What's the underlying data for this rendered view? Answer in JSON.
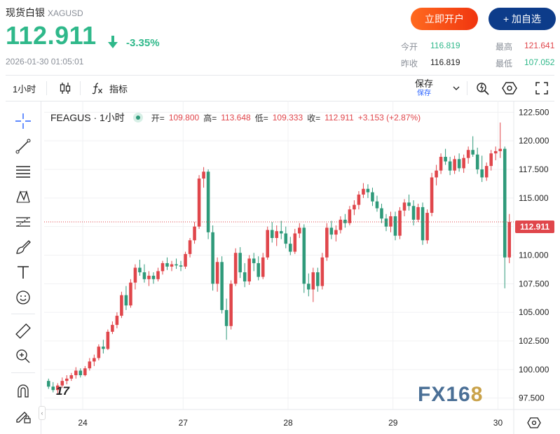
{
  "header": {
    "name": "现货白银",
    "code": "XAGUSD",
    "price": "112.911",
    "change_pct": "-3.35%",
    "timestamp": "2026-01-30 01:05:01",
    "open_account_label": "立即开户",
    "add_watch_label": "+ 加自选"
  },
  "stats": {
    "open_label": "今开",
    "open_value": "116.819",
    "high_label": "最高",
    "high_value": "121.641",
    "prev_close_label": "昨收",
    "prev_close_value": "116.819",
    "low_label": "最低",
    "low_value": "107.052"
  },
  "toolbar": {
    "interval": "1小时",
    "indicators_label": "指标",
    "save_label": "保存",
    "save_sub_label": "保存"
  },
  "legend": {
    "symbol": "FEAGUS · 1小时",
    "open_label": "开=",
    "open": "109.800",
    "high_label": "高=",
    "high": "113.648",
    "low_label": "低=",
    "low": "109.333",
    "close_label": "收=",
    "close": "112.911",
    "change": "+3.153 (+2.87%)"
  },
  "watermark": "FX168",
  "colors": {
    "up": "#e0464b",
    "down": "#2f9a7a",
    "accent_green": "#2fb88a"
  },
  "chart_data": {
    "type": "candlestick",
    "current_price": 112.911,
    "y_ticks": [
      "122.500",
      "120.000",
      "117.500",
      "115.000",
      "112.500",
      "110.000",
      "107.500",
      "105.000",
      "102.500",
      "100.000",
      "97.500"
    ],
    "ylim": [
      96.5,
      123.5
    ],
    "x_ticks": [
      "24",
      "27",
      "28",
      "29",
      "30"
    ],
    "ohlc": [
      [
        99.0,
        99.2,
        98.3,
        98.5
      ],
      [
        98.5,
        98.9,
        98.0,
        98.2
      ],
      [
        98.2,
        98.8,
        97.9,
        98.6
      ],
      [
        98.6,
        99.3,
        98.4,
        99.0
      ],
      [
        99.0,
        99.5,
        98.7,
        99.2
      ],
      [
        99.2,
        99.7,
        99.0,
        99.5
      ],
      [
        99.5,
        100.2,
        99.2,
        99.9
      ],
      [
        99.9,
        100.1,
        99.3,
        99.5
      ],
      [
        99.5,
        100.3,
        99.4,
        100.1
      ],
      [
        100.1,
        101.0,
        99.9,
        100.7
      ],
      [
        100.7,
        101.3,
        100.3,
        101.0
      ],
      [
        101.0,
        102.2,
        100.8,
        102.0
      ],
      [
        102.0,
        102.6,
        101.4,
        101.8
      ],
      [
        101.8,
        103.5,
        101.7,
        103.3
      ],
      [
        103.3,
        104.2,
        103.1,
        103.9
      ],
      [
        103.9,
        105.0,
        103.6,
        104.7
      ],
      [
        104.7,
        106.8,
        104.5,
        106.5
      ],
      [
        106.5,
        107.3,
        105.2,
        105.6
      ],
      [
        105.6,
        107.9,
        105.4,
        107.6
      ],
      [
        107.6,
        109.2,
        107.0,
        108.9
      ],
      [
        108.9,
        109.6,
        108.2,
        108.5
      ],
      [
        108.5,
        109.2,
        107.6,
        107.9
      ],
      [
        107.9,
        108.6,
        107.3,
        108.2
      ],
      [
        108.2,
        108.5,
        107.5,
        107.9
      ],
      [
        107.9,
        108.9,
        107.7,
        108.6
      ],
      [
        108.6,
        109.5,
        108.3,
        109.3
      ],
      [
        109.3,
        109.8,
        108.7,
        109.0
      ],
      [
        109.0,
        109.5,
        108.6,
        109.2
      ],
      [
        109.2,
        109.7,
        108.8,
        109.1
      ],
      [
        109.1,
        109.5,
        108.6,
        109.0
      ],
      [
        109.0,
        110.3,
        108.8,
        110.1
      ],
      [
        110.1,
        111.5,
        109.8,
        111.3
      ],
      [
        111.3,
        112.9,
        111.0,
        112.5
      ],
      [
        112.5,
        117.0,
        112.3,
        116.7
      ],
      [
        116.7,
        117.7,
        115.9,
        117.3
      ],
      [
        117.3,
        117.5,
        111.4,
        112.0
      ],
      [
        112.0,
        112.6,
        106.9,
        107.5
      ],
      [
        107.5,
        109.8,
        106.8,
        109.4
      ],
      [
        109.4,
        109.9,
        104.9,
        105.2
      ],
      [
        105.2,
        106.2,
        102.6,
        103.8
      ],
      [
        103.8,
        107.8,
        103.5,
        107.5
      ],
      [
        107.5,
        110.6,
        107.3,
        110.2
      ],
      [
        110.2,
        110.7,
        108.0,
        108.5
      ],
      [
        108.5,
        109.3,
        107.2,
        107.7
      ],
      [
        107.7,
        110.0,
        107.4,
        109.7
      ],
      [
        109.7,
        110.2,
        108.6,
        109.3
      ],
      [
        109.3,
        109.9,
        107.8,
        108.1
      ],
      [
        108.1,
        110.2,
        107.9,
        109.8
      ],
      [
        109.8,
        112.5,
        109.6,
        112.2
      ],
      [
        112.2,
        112.9,
        111.1,
        111.5
      ],
      [
        111.5,
        112.6,
        110.8,
        112.1
      ],
      [
        112.1,
        113.0,
        111.4,
        111.9
      ],
      [
        111.9,
        112.5,
        110.6,
        111.0
      ],
      [
        111.0,
        111.6,
        110.0,
        110.3
      ],
      [
        110.3,
        112.3,
        110.1,
        111.9
      ],
      [
        111.9,
        112.8,
        111.5,
        112.4
      ],
      [
        112.4,
        112.7,
        106.7,
        107.5
      ],
      [
        107.5,
        108.4,
        106.4,
        107.0
      ],
      [
        107.0,
        108.9,
        105.9,
        108.5
      ],
      [
        108.5,
        108.9,
        106.8,
        107.3
      ],
      [
        107.3,
        110.2,
        107.0,
        109.8
      ],
      [
        109.8,
        112.8,
        109.5,
        112.4
      ],
      [
        112.4,
        113.0,
        111.4,
        111.8
      ],
      [
        111.8,
        112.6,
        111.2,
        112.2
      ],
      [
        112.2,
        113.4,
        111.9,
        113.1
      ],
      [
        113.1,
        113.6,
        112.4,
        112.8
      ],
      [
        112.8,
        114.3,
        112.6,
        114.0
      ],
      [
        114.0,
        114.8,
        113.5,
        114.4
      ],
      [
        114.4,
        115.6,
        114.0,
        115.3
      ],
      [
        115.3,
        116.3,
        115.0,
        115.8
      ],
      [
        115.8,
        116.2,
        115.0,
        115.5
      ],
      [
        115.5,
        115.9,
        114.3,
        114.7
      ],
      [
        114.7,
        115.2,
        113.8,
        114.1
      ],
      [
        114.1,
        114.5,
        112.8,
        113.2
      ],
      [
        113.2,
        113.6,
        112.1,
        112.5
      ],
      [
        112.5,
        113.8,
        112.0,
        113.4
      ],
      [
        113.4,
        113.8,
        111.3,
        111.7
      ],
      [
        111.7,
        114.2,
        111.4,
        113.9
      ],
      [
        113.9,
        114.9,
        113.4,
        114.6
      ],
      [
        114.6,
        115.3,
        113.9,
        114.3
      ],
      [
        114.3,
        114.8,
        112.6,
        113.1
      ],
      [
        113.1,
        114.5,
        112.9,
        114.2
      ],
      [
        114.2,
        114.6,
        110.9,
        111.3
      ],
      [
        111.3,
        114.0,
        111.0,
        113.7
      ],
      [
        113.7,
        117.2,
        113.4,
        116.8
      ],
      [
        116.8,
        117.9,
        116.1,
        117.4
      ],
      [
        117.4,
        118.9,
        117.1,
        118.6
      ],
      [
        118.6,
        119.3,
        117.9,
        118.2
      ],
      [
        118.2,
        118.6,
        117.0,
        117.4
      ],
      [
        117.4,
        118.7,
        117.1,
        118.4
      ],
      [
        118.4,
        118.9,
        117.3,
        117.6
      ],
      [
        117.6,
        118.8,
        117.2,
        118.5
      ],
      [
        118.5,
        119.5,
        118.0,
        119.2
      ],
      [
        119.2,
        120.4,
        118.6,
        118.8
      ],
      [
        118.8,
        119.4,
        117.1,
        117.5
      ],
      [
        117.5,
        118.7,
        116.4,
        116.8
      ],
      [
        116.8,
        118.1,
        116.5,
        117.8
      ],
      [
        117.8,
        119.2,
        117.4,
        118.9
      ],
      [
        118.9,
        119.5,
        118.3,
        119.1
      ],
      [
        119.1,
        121.6,
        118.5,
        119.3
      ],
      [
        119.3,
        119.5,
        107.1,
        109.8
      ],
      [
        109.8,
        113.6,
        109.3,
        112.9
      ]
    ]
  }
}
